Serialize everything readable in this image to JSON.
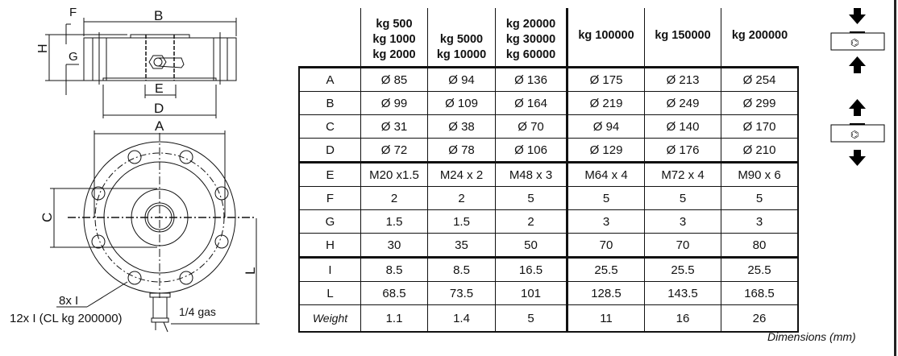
{
  "drawing": {
    "side_view_labels": {
      "B": "B",
      "F": "F",
      "H": "H",
      "G": "G",
      "E": "E",
      "D": "D"
    },
    "front_view_labels": {
      "A": "A",
      "C": "C",
      "L": "L"
    },
    "hole_note_1": "8x I",
    "hole_note_2": "12x I (CL kg 200000)",
    "thread_note": "1/4 gas"
  },
  "table": {
    "columns": [
      [
        "kg 500",
        "kg 1000",
        "kg 2000"
      ],
      [
        "kg 5000",
        "kg 10000"
      ],
      [
        "kg 20000",
        "kg 30000",
        "kg 60000"
      ],
      [
        "kg 100000"
      ],
      [
        "kg 150000"
      ],
      [
        "kg 200000"
      ]
    ],
    "rows": [
      {
        "label": "A",
        "values": [
          "Ø 85",
          "Ø 94",
          "Ø 136",
          "Ø 175",
          "Ø 213",
          "Ø 254"
        ]
      },
      {
        "label": "B",
        "values": [
          "Ø 99",
          "Ø 109",
          "Ø 164",
          "Ø 219",
          "Ø 249",
          "Ø 299"
        ]
      },
      {
        "label": "C",
        "values": [
          "Ø 31",
          "Ø 38",
          "Ø 70",
          "Ø 94",
          "Ø 140",
          "Ø 170"
        ]
      },
      {
        "label": "D",
        "values": [
          "Ø 72",
          "Ø 78",
          "Ø 106",
          "Ø 129",
          "Ø 176",
          "Ø 210"
        ]
      },
      {
        "label": "E",
        "values": [
          "M20 x1.5",
          "M24 x 2",
          "M48 x 3",
          "M64 x 4",
          "M72 x 4",
          "M90 x 6"
        ]
      },
      {
        "label": "F",
        "values": [
          "2",
          "2",
          "5",
          "5",
          "5",
          "5"
        ]
      },
      {
        "label": "G",
        "values": [
          "1.5",
          "1.5",
          "2",
          "3",
          "3",
          "3"
        ]
      },
      {
        "label": "H",
        "values": [
          "30",
          "35",
          "50",
          "70",
          "70",
          "80"
        ]
      },
      {
        "label": "I",
        "values": [
          "8.5",
          "8.5",
          "16.5",
          "25.5",
          "25.5",
          "25.5"
        ]
      },
      {
        "label": "L",
        "values": [
          "68.5",
          "73.5",
          "101",
          "128.5",
          "143.5",
          "168.5"
        ]
      },
      {
        "label": "Weight",
        "values": [
          "1.1",
          "1.4",
          "5",
          "11",
          "16",
          "26"
        ]
      }
    ]
  },
  "units_note": "Dimensions (mm)",
  "load_icons": [
    "compression-arrows-icon",
    "tension-arrows-icon"
  ]
}
